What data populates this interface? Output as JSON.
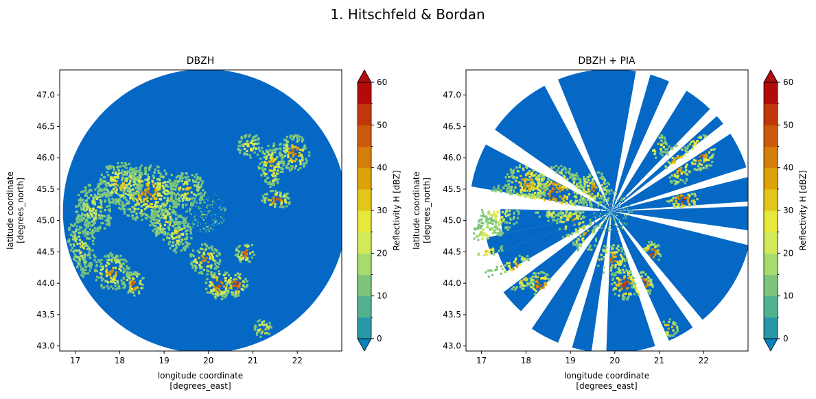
{
  "figure": {
    "title": "1. Hitschfeld & Bordan"
  },
  "chart_data": [
    {
      "type": "heatmap",
      "title": "DBZH",
      "xlabel_line1": "longitude coordinate",
      "xlabel_line2": "[degrees_east]",
      "ylabel_line1": "latitude coordinate",
      "ylabel_line2": "[degrees_north]",
      "xlim": [
        16.65,
        23.0
      ],
      "ylim": [
        42.92,
        47.4
      ],
      "xticks": [
        "17",
        "18",
        "19",
        "20",
        "21",
        "22"
      ],
      "yticks": [
        "43.0",
        "43.5",
        "44.0",
        "44.5",
        "45.0",
        "45.5",
        "46.0",
        "46.5",
        "47.0"
      ],
      "radar_center": [
        19.92,
        45.15
      ],
      "missing_sectors": false,
      "colorbar": {
        "label": "Reflectivity H [dBZ]",
        "range": [
          0,
          60
        ],
        "step": 5,
        "ticks": [
          "0",
          "10",
          "20",
          "30",
          "40",
          "50",
          "60"
        ],
        "extend": "both"
      }
    },
    {
      "type": "heatmap",
      "title": "DBZH + PIA",
      "xlabel_line1": "longitude coordinate",
      "xlabel_line2": "[degrees_east]",
      "ylabel_line1": "latitude coordinate",
      "ylabel_line2": "[degrees_north]",
      "xlim": [
        16.65,
        23.0
      ],
      "ylim": [
        42.92,
        47.4
      ],
      "xticks": [
        "17",
        "18",
        "19",
        "20",
        "21",
        "22"
      ],
      "yticks": [
        "43.0",
        "43.5",
        "44.0",
        "44.5",
        "45.0",
        "45.5",
        "46.0",
        "46.5",
        "47.0"
      ],
      "radar_center": [
        19.92,
        45.15
      ],
      "missing_sectors": true,
      "colorbar": {
        "label": "Reflectivity H [dBZ]",
        "range": [
          0,
          60
        ],
        "step": 5,
        "ticks": [
          "0",
          "10",
          "20",
          "30",
          "40",
          "50",
          "60"
        ],
        "extend": "both"
      }
    }
  ],
  "colors": {
    "background_blue": "#0568c4",
    "levels": [
      "#0a82c0",
      "#2898a8",
      "#52b290",
      "#7dc57d",
      "#a8db6e",
      "#d2ea5a",
      "#e8e83c",
      "#e2c619",
      "#dca208",
      "#d47e0d",
      "#cc5a0c",
      "#c2360c",
      "#b00c0c"
    ]
  }
}
